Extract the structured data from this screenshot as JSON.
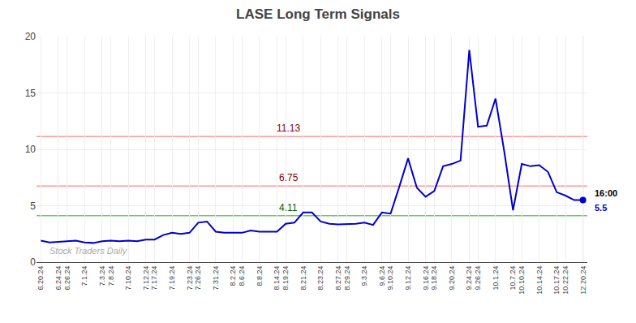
{
  "chart_data": {
    "type": "line",
    "title": "LASE Long Term Signals",
    "categories": [
      "6.20.24",
      null,
      "6.24.24",
      "6.26.24",
      null,
      "7.1.24",
      null,
      "7.3.24",
      "7.8.24",
      null,
      "7.10.24",
      null,
      "7.12.24",
      "7.17.24",
      null,
      "7.19.24",
      null,
      "7.23.24",
      "7.26.24",
      null,
      "7.31.24",
      null,
      "8.2.24",
      "8.6.24",
      null,
      "8.8.24",
      null,
      "8.14.24",
      "8.19.24",
      null,
      "8.21.24",
      null,
      "8.23.24",
      null,
      "8.27.24",
      "8.29.24",
      null,
      "9.3.24",
      null,
      "9.6.24",
      "9.10.24",
      null,
      "9.12.24",
      null,
      "9.16.24",
      "9.18.24",
      null,
      "9.20.24",
      null,
      "9.24.24",
      "9.26.24",
      null,
      "10.1.24",
      null,
      "10.7.24",
      "10.10.24",
      null,
      "10.14.24",
      null,
      "10.17.24",
      "10.22.24",
      null,
      "12.20.24"
    ],
    "values": [
      1.9,
      1.75,
      1.8,
      1.85,
      1.9,
      1.75,
      1.7,
      1.85,
      1.9,
      1.85,
      1.9,
      1.85,
      2.0,
      2.0,
      2.4,
      2.6,
      2.5,
      2.6,
      3.5,
      3.6,
      2.7,
      2.6,
      2.6,
      2.6,
      2.8,
      2.7,
      2.7,
      2.7,
      3.4,
      3.5,
      4.4,
      4.4,
      3.6,
      3.4,
      3.35,
      3.35,
      3.4,
      3.5,
      3.3,
      4.4,
      4.3,
      6.7,
      9.2,
      6.6,
      5.8,
      6.3,
      8.5,
      8.7,
      9.0,
      18.8,
      12.0,
      12.1,
      14.5,
      9.8,
      4.6,
      8.7,
      8.5,
      8.6,
      8.0,
      6.2,
      5.9,
      5.5,
      5.5
    ],
    "color": "#0000cc",
    "marker": "circle",
    "ylim": [
      0,
      20
    ],
    "yticks": [
      0,
      5,
      10,
      15,
      20
    ],
    "grid": true,
    "hlines": [
      {
        "value": 11.13,
        "label": "11.13",
        "color": "#ff9999",
        "label_color": "darkred"
      },
      {
        "value": 6.75,
        "label": "6.75",
        "color": "#ff9999",
        "label_color": "darkred"
      },
      {
        "value": 4.11,
        "label": "4.11",
        "color": "#66cc66",
        "label_color": "darkgreen"
      }
    ],
    "vline": {
      "color": "#aaaaaa"
    },
    "last_point_labels": [
      {
        "text": "16:00",
        "color": "black"
      },
      {
        "text": "5.5",
        "color": "#0000cc"
      }
    ],
    "watermark": {
      "text": "Stock Traders Daily",
      "color": "#aaaaaa"
    }
  }
}
